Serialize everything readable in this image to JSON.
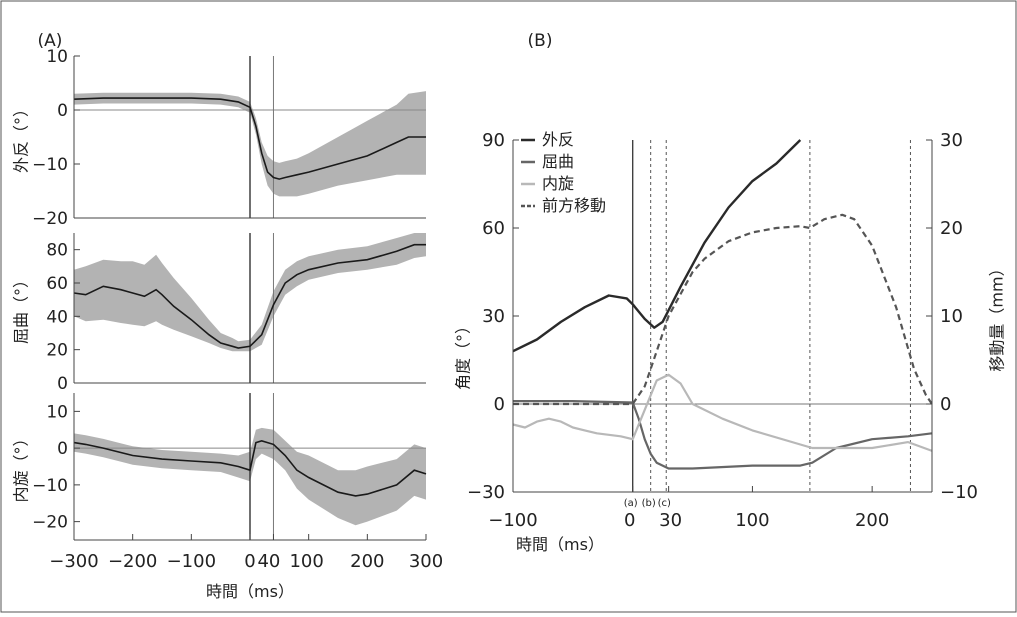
{
  "chart_data": [
    {
      "panel_label": "(A)",
      "type": "line",
      "x_ticks": [
        -300,
        -200,
        -100,
        0,
        40,
        100,
        200,
        300
      ],
      "x_tick_labels": [
        "−300",
        "−200",
        "−100",
        "0",
        "40",
        "100",
        "200",
        "300"
      ],
      "xlabel": "時間（ms）",
      "xlim": [
        -300,
        300
      ],
      "vlines": [
        0,
        40
      ],
      "subplots": [
        {
          "ylabel": "外反（°）",
          "ylim": [
            -20,
            10
          ],
          "y_ticks": [
            -20,
            -10,
            0,
            10
          ],
          "y_tick_labels": [
            "−20",
            "−10",
            "0",
            "10"
          ],
          "x": [
            -300,
            -250,
            -200,
            -150,
            -100,
            -50,
            -20,
            0,
            10,
            20,
            30,
            40,
            50,
            60,
            80,
            100,
            150,
            200,
            250,
            270,
            300
          ],
          "mean": [
            2,
            2.2,
            2.2,
            2.2,
            2.2,
            2,
            1.5,
            0.5,
            -3,
            -8,
            -11.5,
            -12.5,
            -12.8,
            -12.5,
            -12,
            -11.5,
            -10,
            -8.5,
            -6,
            -5,
            -5
          ],
          "lower": [
            1,
            1.2,
            1.2,
            1.2,
            1.2,
            1,
            0.5,
            -0.5,
            -4.5,
            -10,
            -14,
            -15.5,
            -16,
            -16,
            -16,
            -15.5,
            -14,
            -13,
            -12,
            -12,
            -12
          ],
          "upper": [
            3,
            3.2,
            3.2,
            3.2,
            3.2,
            3,
            2.5,
            1.5,
            -1.5,
            -6,
            -8.5,
            -9.5,
            -9.8,
            -9.5,
            -9,
            -8,
            -5,
            -2,
            1,
            3,
            3.5
          ]
        },
        {
          "ylabel": "屈曲（°）",
          "ylim": [
            0,
            90
          ],
          "y_ticks": [
            0,
            20,
            40,
            60,
            80
          ],
          "y_tick_labels": [
            "0",
            "20",
            "40",
            "60",
            "80"
          ],
          "x": [
            -300,
            -280,
            -250,
            -220,
            -200,
            -180,
            -160,
            -150,
            -130,
            -100,
            -70,
            -50,
            -30,
            -20,
            0,
            20,
            40,
            60,
            80,
            100,
            150,
            200,
            250,
            280,
            300
          ],
          "mean": [
            54,
            53,
            58,
            56,
            54,
            52,
            56,
            53,
            46,
            38,
            29,
            24,
            22,
            21,
            22,
            29,
            47,
            60,
            65,
            68,
            72,
            74,
            79,
            83,
            83
          ],
          "lower": [
            40,
            37,
            38,
            36,
            35,
            34,
            37,
            35,
            32,
            28,
            24,
            21,
            19,
            19,
            19,
            23,
            40,
            53,
            58,
            62,
            66,
            68,
            71,
            75,
            76
          ],
          "upper": [
            68,
            70,
            74,
            73,
            73,
            71,
            77,
            72,
            63,
            51,
            38,
            30,
            27,
            25,
            26,
            35,
            55,
            68,
            73,
            76,
            80,
            82,
            87,
            90,
            90
          ]
        },
        {
          "ylabel": "内旋（°）",
          "ylim": [
            -25,
            15
          ],
          "y_ticks": [
            -20,
            -10,
            0,
            10
          ],
          "y_tick_labels": [
            "−20",
            "−10",
            "0",
            "10"
          ],
          "x": [
            -300,
            -280,
            -250,
            -200,
            -150,
            -100,
            -50,
            -20,
            0,
            10,
            20,
            40,
            60,
            80,
            100,
            150,
            180,
            200,
            250,
            280,
            300
          ],
          "mean": [
            1.5,
            1,
            0,
            -2,
            -3,
            -3.5,
            -4,
            -5,
            -6,
            1.5,
            2,
            1,
            -2,
            -6,
            -8,
            -12,
            -13,
            -12.5,
            -10,
            -6,
            -7
          ],
          "lower": [
            -1,
            -1.5,
            -2.5,
            -4.5,
            -5.5,
            -6,
            -6.5,
            -8,
            -9,
            -3,
            -1.5,
            -3,
            -6,
            -11,
            -14,
            -19,
            -21,
            -20,
            -17,
            -13,
            -14
          ],
          "upper": [
            4,
            3.5,
            2.5,
            0.5,
            -0.5,
            -1,
            -1.5,
            -2,
            -1,
            5,
            5.5,
            5,
            2,
            -1,
            -2,
            -6,
            -6,
            -5,
            -3,
            1,
            0
          ]
        }
      ]
    },
    {
      "panel_label": "(B)",
      "type": "line",
      "xlabel": "時間（ms）",
      "xlim": [
        -100,
        250
      ],
      "x_ticks": [
        -100,
        0,
        30,
        100,
        200
      ],
      "x_tick_labels": [
        "−100",
        "0",
        "30",
        "100",
        "200"
      ],
      "event_labels": [
        "(a)",
        "(b)",
        "(c)"
      ],
      "ylabel_left": "角度（°）",
      "ylim_left": [
        -30,
        90
      ],
      "y_ticks_left": [
        -30,
        0,
        30,
        60,
        90
      ],
      "y_tick_labels_left": [
        "−30",
        "0",
        "30",
        "60",
        "90"
      ],
      "ylabel_right": "移動量（mm）",
      "ylim_right": [
        -10,
        30
      ],
      "y_ticks_right": [
        -10,
        0,
        10,
        20,
        30
      ],
      "y_tick_labels_right": [
        "−10",
        "0",
        "10",
        "20",
        "30"
      ],
      "vlines_solid": [
        0
      ],
      "vlines_dashed": [
        15,
        28,
        148,
        232
      ],
      "legend": {
        "placement": "top-left",
        "entries": [
          "外反",
          "屈曲",
          "内旋",
          "前方移動"
        ]
      },
      "series": [
        {
          "name": "外反",
          "axis": "left",
          "color": "#2a2a2a",
          "dash": false,
          "x": [
            -100,
            -80,
            -60,
            -40,
            -20,
            -5,
            0,
            10,
            18,
            25,
            40,
            60,
            80,
            100,
            120,
            140
          ],
          "values": [
            18,
            22,
            28,
            33,
            37,
            36,
            34,
            29,
            26,
            28,
            40,
            55,
            67,
            76,
            82,
            90
          ]
        },
        {
          "name": "屈曲",
          "axis": "left",
          "color": "#666666",
          "dash": false,
          "x": [
            -100,
            -50,
            0,
            5,
            10,
            15,
            20,
            30,
            50,
            100,
            140,
            150,
            170,
            200,
            230,
            250
          ],
          "values": [
            1,
            1,
            0.5,
            -5,
            -12,
            -17,
            -20,
            -22,
            -22,
            -21,
            -21,
            -20,
            -15,
            -12,
            -11,
            -10
          ]
        },
        {
          "name": "内旋",
          "axis": "left",
          "color": "#b8b8b8",
          "dash": false,
          "x": [
            -100,
            -90,
            -80,
            -70,
            -60,
            -50,
            -40,
            -30,
            -10,
            0,
            10,
            20,
            30,
            40,
            50,
            75,
            100,
            150,
            200,
            230,
            250
          ],
          "values": [
            -7,
            -8,
            -6,
            -5,
            -6,
            -8,
            -9,
            -10,
            -11,
            -12,
            -2,
            8,
            10,
            7,
            0,
            -5,
            -9,
            -15,
            -15,
            -13,
            -16
          ]
        },
        {
          "name": "前方移動",
          "axis": "right",
          "color": "#555555",
          "dash": true,
          "x": [
            -100,
            -50,
            0,
            10,
            20,
            30,
            40,
            50,
            60,
            80,
            100,
            120,
            140,
            148,
            160,
            175,
            185,
            200,
            220,
            235,
            245,
            250
          ],
          "values": [
            0,
            0,
            0,
            2,
            6,
            10,
            12.5,
            15,
            16.5,
            18.5,
            19.5,
            20,
            20.2,
            20,
            21,
            21.5,
            21,
            18,
            11,
            4,
            1,
            0
          ]
        }
      ]
    }
  ]
}
